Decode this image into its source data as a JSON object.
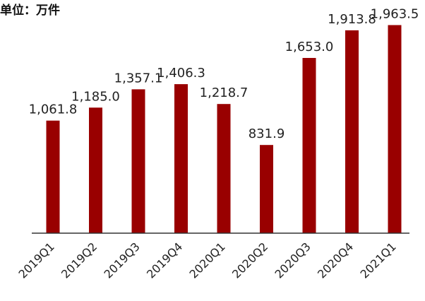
{
  "chart_data": {
    "type": "bar",
    "unit_label": "单位：万件",
    "categories": [
      "2019Q1",
      "2019Q2",
      "2019Q3",
      "2019Q4",
      "2020Q1",
      "2020Q2",
      "2020Q3",
      "2020Q4",
      "2021Q1"
    ],
    "values": [
      1061.8,
      1185.0,
      1357.1,
      1406.3,
      1218.7,
      831.9,
      1653.0,
      1913.8,
      1963.5
    ],
    "value_labels": [
      "1,061.8",
      "1,185.0",
      "1,357.1",
      "1,406.3",
      "1,218.7",
      "831.9",
      "1,653.0",
      "1,913.8",
      "1,963.5"
    ],
    "ylim": [
      0,
      2000
    ],
    "grid": false,
    "legend": "none",
    "bar_color": "#990000",
    "axis_color": "#333333",
    "text_color": "#222222"
  }
}
